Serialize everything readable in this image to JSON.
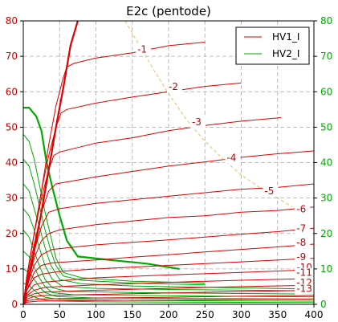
{
  "chart_data": {
    "type": "line",
    "title": "E2c (pentode)",
    "xlabel": "",
    "ylabel": "",
    "xlim": [
      0,
      400
    ],
    "ylim": [
      0,
      80
    ],
    "xticks": [
      "0",
      "50",
      "100",
      "150",
      "200",
      "250",
      "300",
      "350",
      "400"
    ],
    "yticks": [
      "0",
      "10",
      "20",
      "30",
      "40",
      "50",
      "60",
      "70",
      "80"
    ],
    "y2ticks": [
      "0",
      "10",
      "20",
      "30",
      "40",
      "50",
      "60",
      "70",
      "80"
    ],
    "grid": true,
    "legend_position": "top-right",
    "colors": {
      "red": "#dd0000",
      "green": "#00aa00",
      "bound": "#e8c060",
      "grid": "#aaaaaa",
      "y2": "#00aa00"
    },
    "legend": [
      {
        "name": "HV1_I",
        "color": "#dd0000"
      },
      {
        "name": "HV2_I",
        "color": "#00aa00"
      }
    ],
    "red_curves": [
      {
        "label": "-1",
        "label_x": 157,
        "label_y": 71,
        "points": [
          [
            0,
            0
          ],
          [
            5,
            5
          ],
          [
            15,
            15
          ],
          [
            25,
            26
          ],
          [
            35,
            38
          ],
          [
            45,
            50
          ],
          [
            55,
            61
          ],
          [
            65,
            73
          ],
          [
            75,
            80
          ]
        ]
      },
      {
        "label": "-1",
        "points": [
          [
            0,
            0
          ],
          [
            5,
            8
          ],
          [
            15,
            20
          ],
          [
            25,
            32
          ],
          [
            35,
            45
          ],
          [
            45,
            56
          ],
          [
            55,
            64
          ],
          [
            60,
            67
          ],
          [
            70,
            68
          ],
          [
            100,
            69.5
          ],
          [
            150,
            71
          ],
          [
            200,
            73
          ],
          [
            250,
            74
          ]
        ]
      },
      {
        "label": "-2",
        "label_x": 200,
        "label_y": 60.5,
        "points": [
          [
            0,
            0
          ],
          [
            5,
            8
          ],
          [
            15,
            20
          ],
          [
            25,
            32
          ],
          [
            35,
            42
          ],
          [
            45,
            50
          ],
          [
            52,
            54
          ],
          [
            60,
            55
          ],
          [
            100,
            56.8
          ],
          [
            150,
            58.5
          ],
          [
            200,
            60
          ],
          [
            250,
            61.5
          ],
          [
            300,
            62.5
          ]
        ]
      },
      {
        "label": "-3",
        "label_x": 232,
        "label_y": 50.5,
        "points": [
          [
            0,
            0
          ],
          [
            5,
            8
          ],
          [
            15,
            20
          ],
          [
            25,
            30
          ],
          [
            35,
            38
          ],
          [
            42,
            42
          ],
          [
            50,
            43
          ],
          [
            100,
            45.5
          ],
          [
            150,
            47
          ],
          [
            200,
            49
          ],
          [
            250,
            50.5
          ],
          [
            300,
            51.7
          ],
          [
            355,
            52.7
          ]
        ]
      },
      {
        "label": "-4",
        "label_x": 280,
        "label_y": 40.5,
        "points": [
          [
            0,
            0
          ],
          [
            5,
            7
          ],
          [
            15,
            17
          ],
          [
            25,
            26
          ],
          [
            35,
            32
          ],
          [
            45,
            34
          ],
          [
            100,
            36
          ],
          [
            150,
            37.5
          ],
          [
            200,
            39
          ],
          [
            250,
            40.2
          ],
          [
            300,
            41.5
          ],
          [
            350,
            42.5
          ],
          [
            400,
            43.3
          ]
        ]
      },
      {
        "label": "-5",
        "label_x": 332,
        "label_y": 31,
        "points": [
          [
            0,
            0
          ],
          [
            5,
            6
          ],
          [
            15,
            15
          ],
          [
            25,
            22
          ],
          [
            35,
            26
          ],
          [
            50,
            27
          ],
          [
            100,
            28.5
          ],
          [
            150,
            29.5
          ],
          [
            200,
            30.5
          ],
          [
            250,
            31.5
          ],
          [
            300,
            32.5
          ],
          [
            350,
            33
          ],
          [
            400,
            34
          ]
        ]
      },
      {
        "label": "-6",
        "label_x": 376,
        "label_y": 26,
        "points": [
          [
            0,
            0
          ],
          [
            5,
            5
          ],
          [
            15,
            13
          ],
          [
            25,
            18
          ],
          [
            35,
            20
          ],
          [
            50,
            21
          ],
          [
            100,
            22.5
          ],
          [
            150,
            23.5
          ],
          [
            200,
            24.5
          ],
          [
            250,
            25
          ],
          [
            300,
            26
          ],
          [
            350,
            26.5
          ],
          [
            400,
            27.5
          ]
        ]
      },
      {
        "label": "-7",
        "label_x": 376,
        "label_y": 20.5,
        "points": [
          [
            0,
            0
          ],
          [
            5,
            5
          ],
          [
            15,
            11
          ],
          [
            25,
            14
          ],
          [
            40,
            15.5
          ],
          [
            100,
            16.8
          ],
          [
            150,
            17.5
          ],
          [
            200,
            18.2
          ],
          [
            250,
            19
          ],
          [
            300,
            19.8
          ],
          [
            350,
            20.5
          ],
          [
            400,
            21.5
          ]
        ]
      },
      {
        "label": "-8",
        "label_x": 376,
        "label_y": 16.5,
        "points": [
          [
            0,
            0
          ],
          [
            5,
            4
          ],
          [
            15,
            9
          ],
          [
            25,
            11
          ],
          [
            40,
            11.7
          ],
          [
            100,
            12.5
          ],
          [
            150,
            13.3
          ],
          [
            200,
            14
          ],
          [
            250,
            14.8
          ],
          [
            300,
            15.5
          ],
          [
            350,
            16.2
          ],
          [
            400,
            17
          ]
        ]
      },
      {
        "label": "-9",
        "label_x": 376,
        "label_y": 12.5,
        "points": [
          [
            0,
            0
          ],
          [
            5,
            4
          ],
          [
            15,
            7.5
          ],
          [
            25,
            8.5
          ],
          [
            50,
            9.3
          ],
          [
            100,
            10
          ],
          [
            200,
            11
          ],
          [
            300,
            12
          ],
          [
            400,
            13
          ]
        ]
      },
      {
        "label": "-10",
        "label_x": 376,
        "label_y": 9.5,
        "points": [
          [
            0,
            0
          ],
          [
            5,
            3
          ],
          [
            15,
            5.5
          ],
          [
            30,
            6.3
          ],
          [
            100,
            7.5
          ],
          [
            200,
            8.3
          ],
          [
            300,
            9
          ],
          [
            400,
            9.8
          ]
        ]
      },
      {
        "label": "-11",
        "label_x": 376,
        "label_y": 8,
        "points": [
          [
            0,
            0
          ],
          [
            5,
            2.5
          ],
          [
            15,
            4
          ],
          [
            30,
            4.8
          ],
          [
            100,
            5.5
          ],
          [
            200,
            6.2
          ],
          [
            300,
            6.8
          ],
          [
            400,
            7.3
          ]
        ]
      },
      {
        "label": "-12",
        "label_x": 376,
        "label_y": 5.2,
        "points": [
          [
            0,
            0
          ],
          [
            5,
            2
          ],
          [
            15,
            3
          ],
          [
            30,
            3.5
          ],
          [
            100,
            4
          ],
          [
            200,
            4.5
          ],
          [
            300,
            5
          ],
          [
            400,
            5.4
          ]
        ]
      },
      {
        "label": "-13",
        "label_x": 376,
        "label_y": 3.5,
        "points": [
          [
            0,
            0
          ],
          [
            5,
            1.5
          ],
          [
            15,
            2.2
          ],
          [
            30,
            2.5
          ],
          [
            100,
            2.8
          ],
          [
            200,
            3.2
          ],
          [
            300,
            3.6
          ],
          [
            400,
            4
          ]
        ]
      },
      {
        "label": "",
        "points": [
          [
            0,
            0
          ],
          [
            5,
            1
          ],
          [
            20,
            1.5
          ],
          [
            100,
            1.8
          ],
          [
            200,
            2
          ],
          [
            300,
            2.3
          ],
          [
            400,
            2.5
          ]
        ]
      },
      {
        "label": "",
        "points": [
          [
            0,
            0
          ],
          [
            5,
            0.6
          ],
          [
            20,
            0.9
          ],
          [
            100,
            1.1
          ],
          [
            200,
            1.2
          ],
          [
            300,
            1.4
          ],
          [
            400,
            1.5
          ]
        ]
      }
    ],
    "red_thick": [
      [
        5,
        5
      ],
      [
        15,
        15
      ],
      [
        25,
        26
      ],
      [
        35,
        38
      ],
      [
        45,
        50
      ],
      [
        55,
        61
      ],
      [
        65,
        73
      ],
      [
        75,
        80
      ]
    ],
    "green_thick": [
      [
        0,
        55.5
      ],
      [
        8,
        55.5
      ],
      [
        18,
        53
      ],
      [
        25,
        49
      ],
      [
        32,
        40
      ],
      [
        40,
        33
      ],
      [
        50,
        25
      ],
      [
        60,
        18
      ],
      [
        75,
        13.5
      ],
      [
        120,
        12.5
      ],
      [
        170,
        11.5
      ],
      [
        215,
        10
      ]
    ],
    "green_curves": [
      [
        [
          0,
          48
        ],
        [
          8,
          46
        ],
        [
          15,
          41
        ],
        [
          22,
          34
        ],
        [
          30,
          26
        ],
        [
          38,
          19
        ],
        [
          45,
          13
        ],
        [
          55,
          9
        ],
        [
          80,
          7.5
        ],
        [
          150,
          6.5
        ],
        [
          200,
          6.3
        ],
        [
          250,
          6
        ]
      ],
      [
        [
          0,
          41
        ],
        [
          8,
          39
        ],
        [
          15,
          34
        ],
        [
          22,
          28
        ],
        [
          30,
          21
        ],
        [
          38,
          15
        ],
        [
          45,
          11
        ],
        [
          55,
          8
        ],
        [
          80,
          6.8
        ],
        [
          150,
          6
        ],
        [
          250,
          5.5
        ]
      ],
      [
        [
          0,
          34
        ],
        [
          8,
          32
        ],
        [
          15,
          27
        ],
        [
          22,
          22
        ],
        [
          30,
          16
        ],
        [
          38,
          11
        ],
        [
          50,
          7
        ],
        [
          80,
          5.8
        ],
        [
          150,
          5.2
        ],
        [
          250,
          4.8
        ],
        [
          400,
          4.3
        ]
      ],
      [
        [
          0,
          27
        ],
        [
          8,
          25
        ],
        [
          15,
          21
        ],
        [
          22,
          16
        ],
        [
          30,
          11
        ],
        [
          40,
          7
        ],
        [
          55,
          5
        ],
        [
          100,
          4.5
        ],
        [
          200,
          4.2
        ],
        [
          400,
          3.8
        ]
      ],
      [
        [
          0,
          21
        ],
        [
          8,
          19
        ],
        [
          15,
          15
        ],
        [
          22,
          11
        ],
        [
          30,
          7
        ],
        [
          40,
          4.7
        ],
        [
          60,
          3.7
        ],
        [
          150,
          3.3
        ],
        [
          400,
          2.9
        ]
      ],
      [
        [
          0,
          15
        ],
        [
          8,
          13.5
        ],
        [
          15,
          10.5
        ],
        [
          22,
          7.5
        ],
        [
          30,
          5
        ],
        [
          40,
          3.3
        ],
        [
          70,
          2.7
        ],
        [
          200,
          2.4
        ],
        [
          400,
          2.1
        ]
      ],
      [
        [
          0,
          10
        ],
        [
          8,
          9
        ],
        [
          15,
          7
        ],
        [
          22,
          5
        ],
        [
          30,
          3.3
        ],
        [
          45,
          2.2
        ],
        [
          100,
          1.8
        ],
        [
          400,
          1.5
        ]
      ],
      [
        [
          0,
          6
        ],
        [
          8,
          5.3
        ],
        [
          15,
          4
        ],
        [
          22,
          2.8
        ],
        [
          30,
          2
        ],
        [
          50,
          1.4
        ],
        [
          150,
          1.1
        ],
        [
          400,
          0.9
        ]
      ],
      [
        [
          0,
          3
        ],
        [
          10,
          2.5
        ],
        [
          20,
          1.7
        ],
        [
          35,
          1
        ],
        [
          100,
          0.7
        ],
        [
          400,
          0.5
        ]
      ]
    ],
    "dashed_boundary": [
      [
        140,
        80
      ],
      [
        160,
        73
      ],
      [
        180,
        66
      ],
      [
        200,
        59.5
      ],
      [
        225,
        52
      ],
      [
        250,
        46
      ],
      [
        275,
        41
      ],
      [
        300,
        36.5
      ],
      [
        325,
        33
      ],
      [
        350,
        30
      ],
      [
        370,
        27.5
      ]
    ]
  }
}
